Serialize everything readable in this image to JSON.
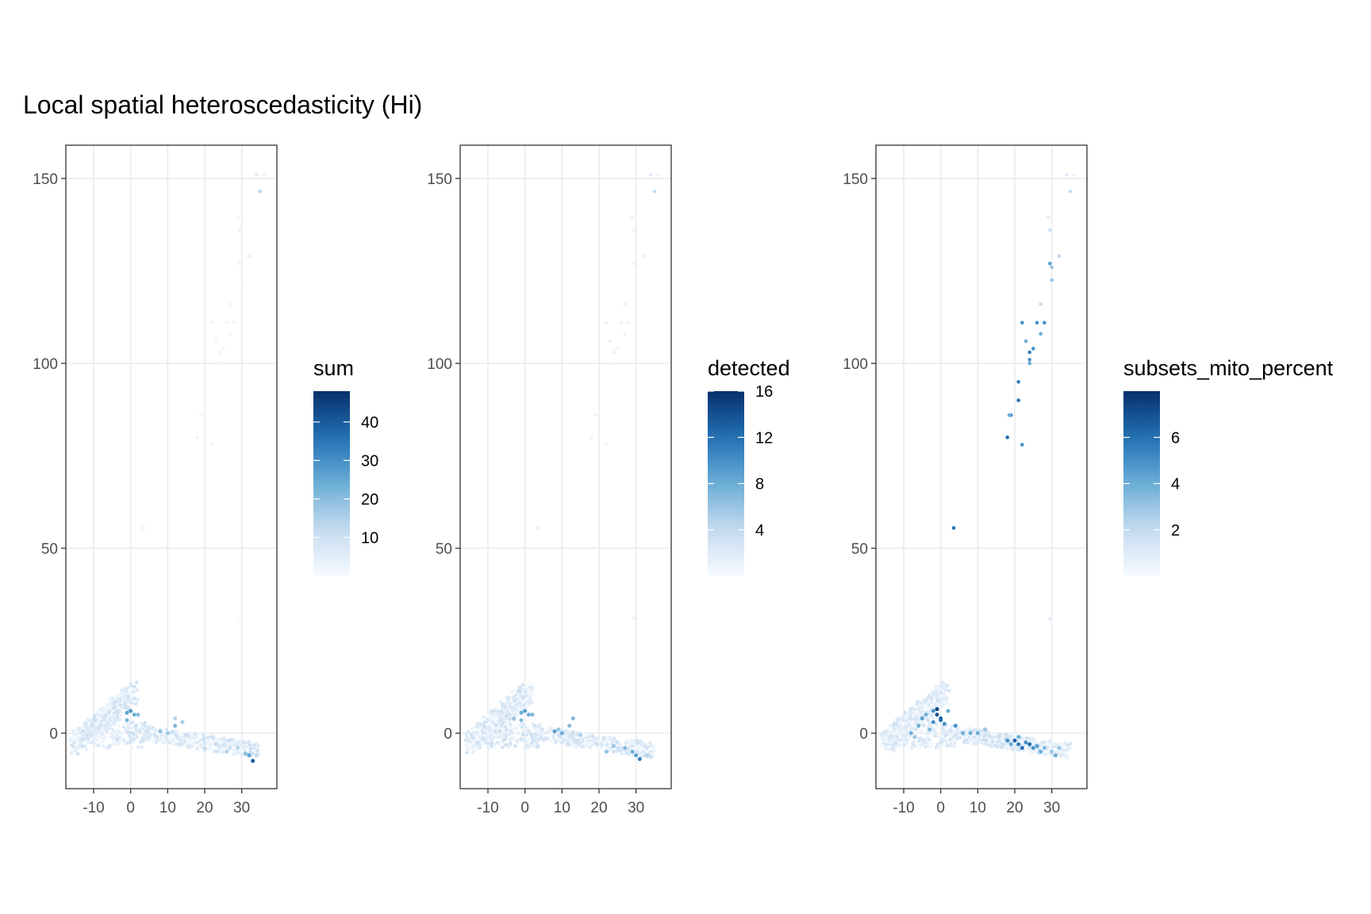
{
  "title": "Local spatial heteroscedasticity (Hi)",
  "chart_data": [
    {
      "type": "scatter",
      "xlim": [
        -17.5,
        39.5
      ],
      "ylim": [
        -15,
        159
      ],
      "xticks": [
        -10,
        0,
        10,
        20,
        30
      ],
      "xtick_labels": [
        "-10",
        "0",
        "10",
        "20",
        "30"
      ],
      "yticks": [
        0,
        50,
        100,
        150
      ],
      "ytick_labels": [
        "0",
        "50",
        "100",
        "150"
      ],
      "grid": true,
      "legend": {
        "title": "sum",
        "min": 0,
        "max": 48,
        "ticks": [
          10,
          20,
          30,
          40
        ],
        "tick_labels": [
          "10",
          "20",
          "30",
          "40"
        ]
      },
      "highlight_scale": 36,
      "points": [
        [
          34,
          151,
          5
        ],
        [
          36,
          151,
          2
        ],
        [
          35,
          146.5,
          14
        ],
        [
          29,
          139.5,
          2
        ],
        [
          29.5,
          136,
          3
        ],
        [
          29.5,
          127,
          3
        ],
        [
          32,
          129,
          3
        ],
        [
          30,
          126,
          2
        ],
        [
          30,
          122.5,
          2
        ],
        [
          27,
          116,
          2
        ],
        [
          28,
          111,
          2
        ],
        [
          22,
          111,
          2
        ],
        [
          26,
          111,
          2
        ],
        [
          23,
          106,
          2
        ],
        [
          25,
          104,
          2
        ],
        [
          24,
          103,
          2
        ],
        [
          27,
          108,
          2
        ],
        [
          24,
          100,
          2
        ],
        [
          19,
          86,
          2
        ],
        [
          18,
          80,
          2
        ],
        [
          22,
          78,
          2
        ],
        [
          3.5,
          55.5,
          3
        ],
        [
          29.5,
          31,
          1
        ]
      ],
      "hot": [
        [
          0,
          6,
          28
        ],
        [
          -1,
          5.5,
          26
        ],
        [
          1,
          5,
          24
        ],
        [
          -1,
          3.5,
          22
        ],
        [
          2,
          5,
          20
        ],
        [
          8,
          0.5,
          20
        ],
        [
          10,
          0,
          18
        ],
        [
          12,
          2,
          22
        ],
        [
          14,
          3,
          16
        ],
        [
          12,
          4,
          14
        ],
        [
          15,
          -0.5,
          12
        ],
        [
          33,
          -7.5,
          40
        ],
        [
          32,
          -6,
          26
        ],
        [
          31,
          -5.5,
          20
        ],
        [
          34,
          -6,
          12
        ],
        [
          29,
          -4,
          14
        ],
        [
          20,
          -4,
          12
        ],
        [
          23,
          -3,
          12
        ],
        [
          26,
          -5,
          14
        ]
      ]
    },
    {
      "type": "scatter",
      "xlim": [
        -17.5,
        39.5
      ],
      "ylim": [
        -15,
        159
      ],
      "xticks": [
        -10,
        0,
        10,
        20,
        30
      ],
      "xtick_labels": [
        "-10",
        "0",
        "10",
        "20",
        "30"
      ],
      "yticks": [
        0,
        50,
        100,
        150
      ],
      "ytick_labels": [
        "0",
        "50",
        "100",
        "150"
      ],
      "grid": true,
      "legend": {
        "title": "detected",
        "min": 0,
        "max": 16,
        "ticks": [
          4,
          8,
          12,
          16
        ],
        "tick_labels": [
          "4",
          "8",
          "12",
          "16"
        ]
      },
      "highlight_scale": 12,
      "points": [
        [
          34,
          151,
          2
        ],
        [
          36,
          151,
          1
        ],
        [
          35,
          146.5,
          4
        ],
        [
          29,
          139.5,
          1
        ],
        [
          29.5,
          136,
          1
        ],
        [
          29.5,
          127,
          1
        ],
        [
          32,
          129,
          1
        ],
        [
          30,
          126,
          1
        ],
        [
          30,
          122.5,
          1
        ],
        [
          27,
          116,
          1
        ],
        [
          28,
          111,
          1
        ],
        [
          22,
          111,
          1
        ],
        [
          26,
          111,
          1
        ],
        [
          23,
          106,
          1
        ],
        [
          25,
          104,
          1
        ],
        [
          24,
          103,
          1
        ],
        [
          27,
          108,
          1
        ],
        [
          24,
          100,
          1
        ],
        [
          19,
          86,
          1
        ],
        [
          18,
          80,
          1
        ],
        [
          22,
          78,
          1
        ],
        [
          3.5,
          55.5,
          1
        ],
        [
          29.5,
          31,
          1
        ]
      ],
      "hot": [
        [
          0,
          6,
          9
        ],
        [
          -1,
          5.5,
          8
        ],
        [
          1,
          5,
          8
        ],
        [
          -1,
          3.5,
          7
        ],
        [
          2,
          5,
          7
        ],
        [
          -3,
          4,
          6
        ],
        [
          8,
          0.5,
          9
        ],
        [
          10,
          0,
          8
        ],
        [
          12,
          2,
          7
        ],
        [
          13,
          4,
          7
        ],
        [
          9,
          1,
          6
        ],
        [
          15,
          -0.5,
          5
        ],
        [
          31,
          -7,
          11
        ],
        [
          30,
          -6,
          9
        ],
        [
          29,
          -5,
          8
        ],
        [
          27,
          -4,
          7
        ],
        [
          24,
          -3.5,
          6
        ],
        [
          22,
          -5,
          6
        ],
        [
          33,
          -6,
          5
        ]
      ]
    },
    {
      "type": "scatter",
      "xlim": [
        -17.5,
        39.5
      ],
      "ylim": [
        -15,
        159
      ],
      "xticks": [
        -10,
        0,
        10,
        20,
        30
      ],
      "xtick_labels": [
        "-10",
        "0",
        "10",
        "20",
        "30"
      ],
      "yticks": [
        0,
        50,
        100,
        150
      ],
      "ytick_labels": [
        "0",
        "50",
        "100",
        "150"
      ],
      "grid": true,
      "legend": {
        "title": "subsets_mito_percent",
        "min": 0,
        "max": 8,
        "ticks": [
          2,
          4,
          6
        ],
        "tick_labels": [
          "2",
          "4",
          "6"
        ]
      },
      "highlight_scale": 6,
      "points": [
        [
          34,
          151,
          1
        ],
        [
          36,
          151,
          0.5
        ],
        [
          35,
          146.5,
          2
        ],
        [
          29,
          139.5,
          1
        ],
        [
          29.5,
          136,
          1.5
        ],
        [
          29.5,
          127,
          4.5
        ],
        [
          32,
          129,
          2
        ],
        [
          30,
          126,
          3
        ],
        [
          30,
          122.5,
          3
        ],
        [
          27,
          116,
          2
        ],
        [
          28,
          111,
          5
        ],
        [
          22,
          111,
          5
        ],
        [
          26,
          111,
          5
        ],
        [
          23,
          106,
          4
        ],
        [
          25,
          104,
          5
        ],
        [
          24,
          103,
          5.5
        ],
        [
          27,
          108,
          4
        ],
        [
          24,
          100,
          4
        ],
        [
          19,
          86,
          5
        ],
        [
          18,
          80,
          6
        ],
        [
          22,
          78,
          5
        ],
        [
          3.5,
          55.5,
          6
        ],
        [
          29.5,
          31,
          1
        ],
        [
          24,
          101,
          5
        ],
        [
          21,
          95,
          5.5
        ],
        [
          21,
          90,
          6
        ],
        [
          18.5,
          86,
          4
        ]
      ],
      "hot": [
        [
          -1,
          6.5,
          7.5
        ],
        [
          -1,
          5,
          7
        ],
        [
          0,
          4,
          6.5
        ],
        [
          -2,
          3,
          5
        ],
        [
          0,
          3.5,
          6
        ],
        [
          1,
          2.5,
          5
        ],
        [
          -4,
          5,
          4
        ],
        [
          -6,
          2,
          4
        ],
        [
          -8,
          0,
          4
        ],
        [
          -5,
          4,
          4.5
        ],
        [
          -3,
          1,
          3.5
        ],
        [
          -7,
          -1,
          3
        ],
        [
          2,
          6,
          4
        ],
        [
          -2,
          6,
          5
        ],
        [
          4,
          2,
          5
        ],
        [
          6,
          0,
          4
        ],
        [
          8,
          0,
          4
        ],
        [
          10,
          0,
          4
        ],
        [
          12,
          1,
          3
        ],
        [
          18,
          -2,
          5
        ],
        [
          20,
          -2,
          6.5
        ],
        [
          21,
          -3,
          5.5
        ],
        [
          22,
          -4,
          6
        ],
        [
          23,
          -2.5,
          5
        ],
        [
          24,
          -3,
          6
        ],
        [
          25,
          -4,
          5
        ],
        [
          26,
          -3.5,
          4.5
        ],
        [
          27,
          -5,
          4
        ],
        [
          28,
          -4,
          3.5
        ],
        [
          30,
          -5,
          3
        ],
        [
          31,
          -6,
          4
        ],
        [
          32,
          -4,
          3
        ],
        [
          19,
          -3,
          4
        ],
        [
          21,
          -1,
          4
        ]
      ]
    }
  ]
}
